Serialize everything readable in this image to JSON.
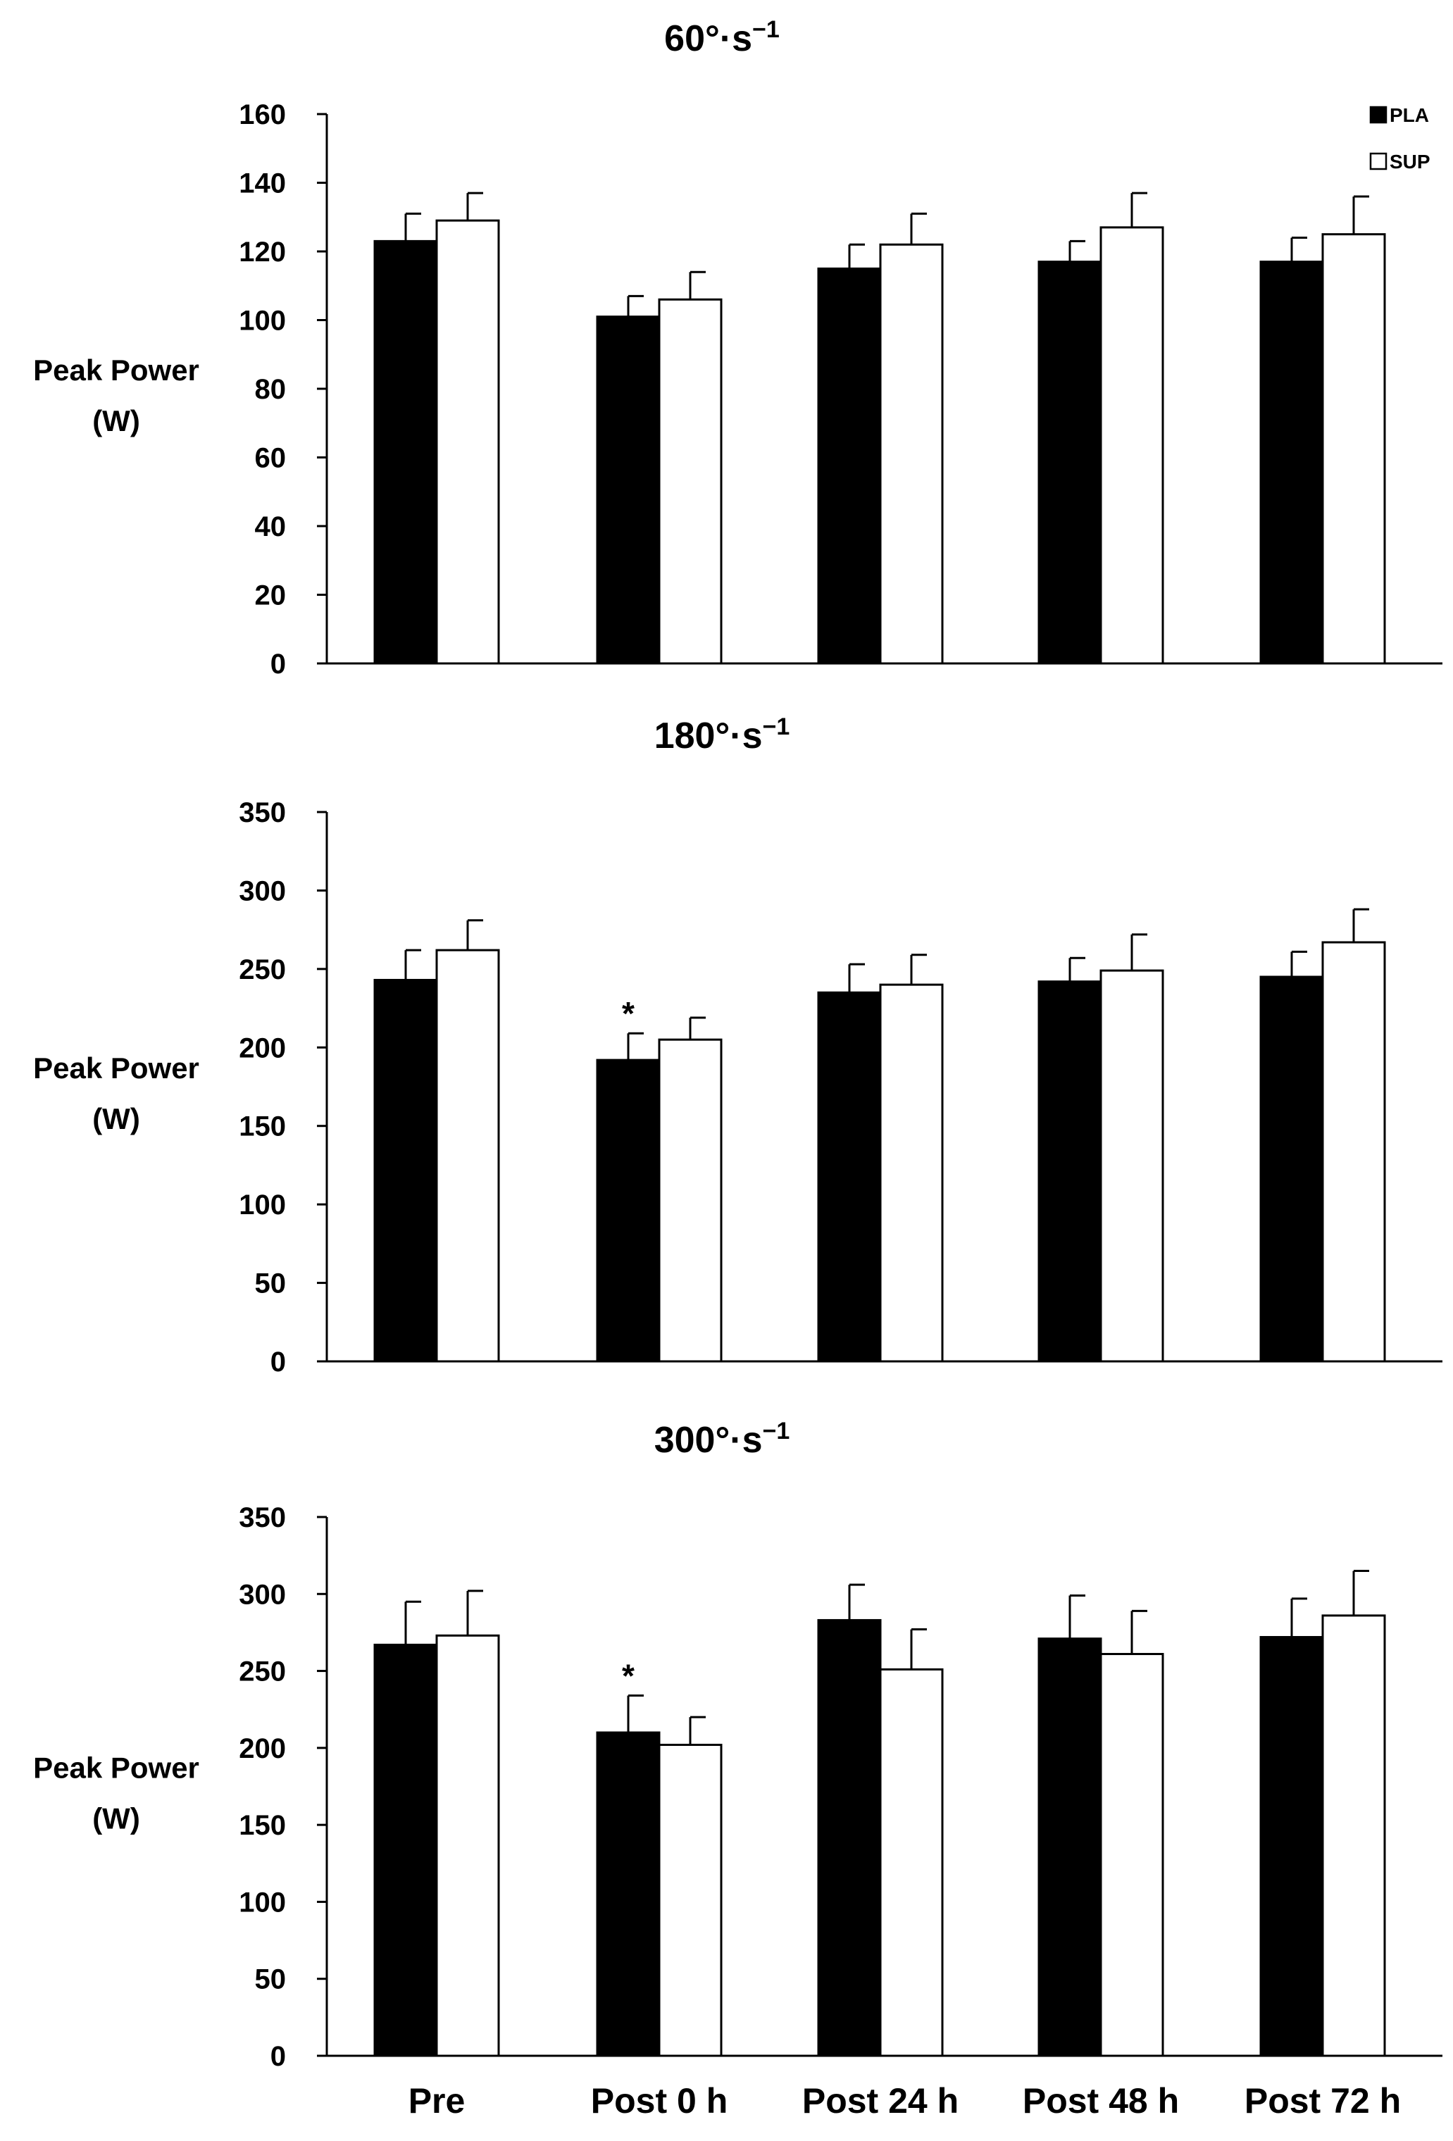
{
  "chart_data": [
    {
      "type": "bar",
      "title": "60°·s",
      "title_superscript": "−1",
      "ylabel": [
        "Peak Power",
        "(W)"
      ],
      "ylim": [
        0,
        160
      ],
      "yticks": [
        0,
        20,
        40,
        60,
        80,
        100,
        120,
        140,
        160
      ],
      "categories": [
        "Pre",
        "Post 0 h",
        "Post 24 h",
        "Post 48 h",
        "Post 72 h"
      ],
      "show_xlabels": false,
      "legend_position": "top-right",
      "series": [
        {
          "name": "PLA",
          "color": "#000000",
          "values": [
            123,
            101,
            115,
            117,
            117
          ],
          "errors": [
            8,
            6,
            7,
            6,
            7
          ]
        },
        {
          "name": "SUP",
          "color": "#ffffff",
          "values": [
            129,
            106,
            122,
            127,
            125
          ],
          "errors": [
            8,
            8,
            9,
            10,
            11
          ]
        }
      ],
      "annotations": []
    },
    {
      "type": "bar",
      "title": "180°·s",
      "title_superscript": "−1",
      "ylabel": [
        "Peak Power",
        "(W)"
      ],
      "ylim": [
        0,
        350
      ],
      "yticks": [
        0,
        50,
        100,
        150,
        200,
        250,
        300,
        350
      ],
      "categories": [
        "Pre",
        "Post 0 h",
        "Post 24 h",
        "Post 48 h",
        "Post 72 h"
      ],
      "show_xlabels": false,
      "series": [
        {
          "name": "PLA",
          "color": "#000000",
          "values": [
            243,
            192,
            235,
            242,
            245
          ],
          "errors": [
            19,
            17,
            18,
            15,
            16
          ]
        },
        {
          "name": "SUP",
          "color": "#ffffff",
          "values": [
            262,
            205,
            240,
            249,
            267
          ],
          "errors": [
            19,
            14,
            19,
            23,
            21
          ]
        }
      ],
      "annotations": [
        {
          "text": "*",
          "category": "Post 0 h",
          "series": "PLA"
        }
      ]
    },
    {
      "type": "bar",
      "title": "300°·s",
      "title_superscript": "−1",
      "ylabel": [
        "Peak Power",
        "(W)"
      ],
      "ylim": [
        0,
        350
      ],
      "yticks": [
        0,
        50,
        100,
        150,
        200,
        250,
        300,
        350
      ],
      "categories": [
        "Pre",
        "Post 0 h",
        "Post 24 h",
        "Post 48 h",
        "Post 72 h"
      ],
      "show_xlabels": true,
      "series": [
        {
          "name": "PLA",
          "color": "#000000",
          "values": [
            267,
            210,
            283,
            271,
            272
          ],
          "errors": [
            28,
            24,
            23,
            28,
            25
          ]
        },
        {
          "name": "SUP",
          "color": "#ffffff",
          "values": [
            273,
            202,
            251,
            261,
            286
          ],
          "errors": [
            29,
            18,
            26,
            28,
            29
          ]
        }
      ],
      "annotations": [
        {
          "text": "*",
          "category": "Post 0 h",
          "series": "PLA"
        }
      ]
    }
  ]
}
